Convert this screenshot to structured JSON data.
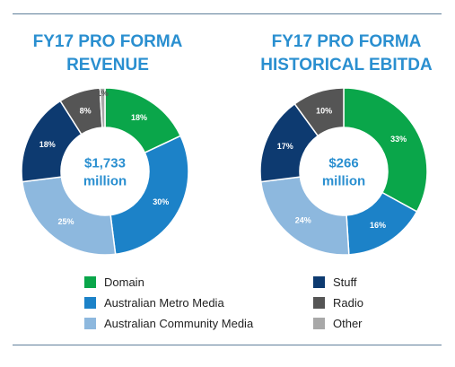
{
  "colors": {
    "domain": "#0aa64a",
    "australian_metro_media": "#1c82c8",
    "australian_community_media": "#8db8de",
    "stuff": "#0d3a70",
    "radio": "#555555",
    "other": "#a8a8a8",
    "title": "#2a8fd0"
  },
  "legend": {
    "left": [
      {
        "label": "Domain",
        "color": "#0aa64a"
      },
      {
        "label": "Australian Metro Media",
        "color": "#1c82c8"
      },
      {
        "label": "Australian Community Media",
        "color": "#8db8de"
      }
    ],
    "right": [
      {
        "label": "Stuff",
        "color": "#0d3a70"
      },
      {
        "label": "Radio",
        "color": "#555555"
      },
      {
        "label": "Other",
        "color": "#a8a8a8"
      }
    ]
  },
  "chart_data": [
    {
      "type": "pie",
      "title": [
        "FY17 PRO FORMA",
        "REVENUE"
      ],
      "center_label": [
        "$1,733",
        "million"
      ],
      "categories": [
        "Domain",
        "Australian Metro Media",
        "Australian Community Media",
        "Stuff",
        "Radio",
        "Other"
      ],
      "values": [
        18,
        30,
        25,
        18,
        8,
        1
      ],
      "labels": [
        "18%",
        "30%",
        "25%",
        "18%",
        "8%",
        "1%"
      ],
      "colors": [
        "#0aa64a",
        "#1c82c8",
        "#8db8de",
        "#0d3a70",
        "#555555",
        "#a8a8a8"
      ]
    },
    {
      "type": "pie",
      "title": [
        "FY17 PRO FORMA",
        "HISTORICAL EBITDA"
      ],
      "center_label": [
        "$266",
        "million"
      ],
      "categories": [
        "Domain",
        "Australian Metro Media",
        "Australian Community Media",
        "Stuff",
        "Radio"
      ],
      "values": [
        33,
        16,
        24,
        17,
        10
      ],
      "labels": [
        "33%",
        "16%",
        "24%",
        "17%",
        "10%"
      ],
      "colors": [
        "#0aa64a",
        "#1c82c8",
        "#8db8de",
        "#0d3a70",
        "#555555"
      ]
    }
  ]
}
